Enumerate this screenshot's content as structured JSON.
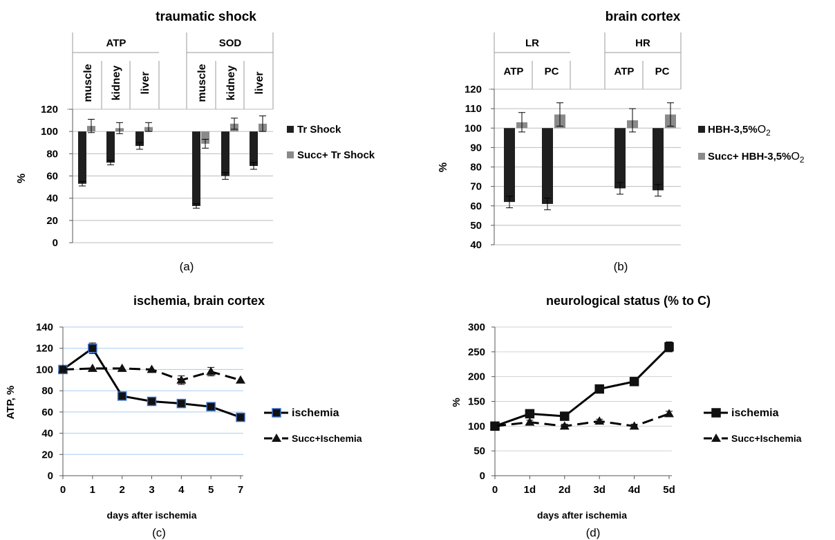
{
  "chart_data": [
    {
      "panel": "(a)",
      "type": "bar",
      "title": "traumatic shock",
      "ylabel": "%",
      "ylim": [
        0,
        120
      ],
      "yticks": [
        0,
        20,
        40,
        60,
        80,
        100,
        120
      ],
      "groups": [
        {
          "label": "ATP",
          "categories": [
            "muscle",
            "kidney",
            "liver"
          ]
        },
        {
          "label": "SOD",
          "categories": [
            "muscle",
            "kidney",
            "liver"
          ]
        }
      ],
      "baseline": 100,
      "series": [
        {
          "name": "Tr Shock",
          "color": "#1f1f1f",
          "values": [
            53,
            72,
            87,
            33,
            60,
            69
          ],
          "errors": [
            2,
            2,
            3,
            2,
            3,
            3
          ]
        },
        {
          "name": "Succ+ Tr Shock",
          "color": "#8a8a8a",
          "values": [
            105,
            103,
            104,
            89,
            107,
            107
          ],
          "errors": [
            6,
            5,
            4,
            4,
            5,
            7
          ]
        }
      ],
      "legend": [
        "Tr Shock",
        "Succ+ Tr Shock"
      ],
      "legend_position": "right"
    },
    {
      "panel": "(b)",
      "type": "bar",
      "title": "brain cortex",
      "ylabel": "%",
      "ylim": [
        40,
        120
      ],
      "yticks": [
        40,
        50,
        60,
        70,
        80,
        90,
        100,
        110,
        120
      ],
      "groups": [
        {
          "label": "LR",
          "categories": [
            "ATP",
            "PC",
            ""
          ]
        },
        {
          "label": "HR",
          "categories": [
            "ATP",
            "PC"
          ]
        }
      ],
      "baseline": 100,
      "series": [
        {
          "name": "HBH-3,5%",
          "name_suffix": "O",
          "name_subscript": "2",
          "color": "#1f1f1f",
          "values": [
            62,
            61,
            null,
            69,
            68
          ],
          "errors": [
            3,
            3,
            null,
            3,
            3
          ]
        },
        {
          "name": "Succ+ HBH-3,5%",
          "name_suffix": "O",
          "name_subscript": "2",
          "color": "#8a8a8a",
          "values": [
            103,
            107,
            null,
            104,
            107
          ],
          "errors": [
            5,
            6,
            null,
            6,
            6
          ]
        }
      ],
      "legend_position": "right"
    },
    {
      "panel": "(c)",
      "type": "line",
      "title": "ischemia,  brain cortex",
      "xlabel": "days after ischemia",
      "ylabel": "ATP, %",
      "categories": [
        "0",
        "1",
        "2",
        "3",
        "4",
        "5",
        "7"
      ],
      "ylim": [
        0,
        140
      ],
      "yticks": [
        0,
        20,
        40,
        60,
        80,
        100,
        120,
        140
      ],
      "grid": true,
      "series": [
        {
          "name": "ischemia",
          "style": "solid",
          "marker": "square",
          "values": [
            100,
            120,
            75,
            70,
            68,
            65,
            55
          ]
        },
        {
          "name": "Succ+Ischemia",
          "style": "dashed",
          "marker": "triangle",
          "values": [
            100,
            101,
            101,
            100,
            90,
            98,
            90
          ]
        }
      ],
      "legend_position": "right"
    },
    {
      "panel": "(d)",
      "type": "line",
      "title": "neurological status (% to C)",
      "xlabel": "days after ischemia",
      "ylabel": "%",
      "categories": [
        "0",
        "1d",
        "2d",
        "3d",
        "4d",
        "5d"
      ],
      "ylim": [
        0,
        300
      ],
      "yticks": [
        0,
        50,
        100,
        150,
        200,
        250,
        300
      ],
      "grid": true,
      "series": [
        {
          "name": "ischemia",
          "style": "solid",
          "marker": "square",
          "values": [
            100,
            125,
            120,
            175,
            190,
            260
          ],
          "errors": [
            0,
            5,
            5,
            6,
            6,
            10
          ]
        },
        {
          "name": "Succ+Ischemia",
          "style": "dashed",
          "marker": "triangle",
          "values": [
            100,
            108,
            100,
            110,
            100,
            125
          ],
          "errors": [
            0,
            4,
            4,
            4,
            4,
            5
          ]
        }
      ],
      "legend_position": "right"
    }
  ]
}
